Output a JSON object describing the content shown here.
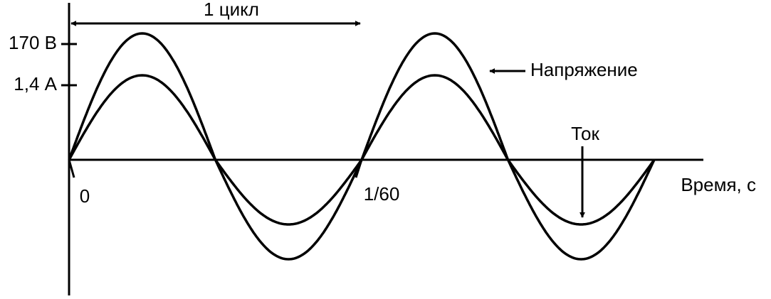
{
  "labels": {
    "cycle": "1 цикл",
    "voltage_peak": "170 В",
    "current_peak": "1,4 А",
    "voltage": "Напряжение",
    "current": "Ток",
    "origin": "0",
    "period": "1/60",
    "x_axis": "Время, с"
  }
}
